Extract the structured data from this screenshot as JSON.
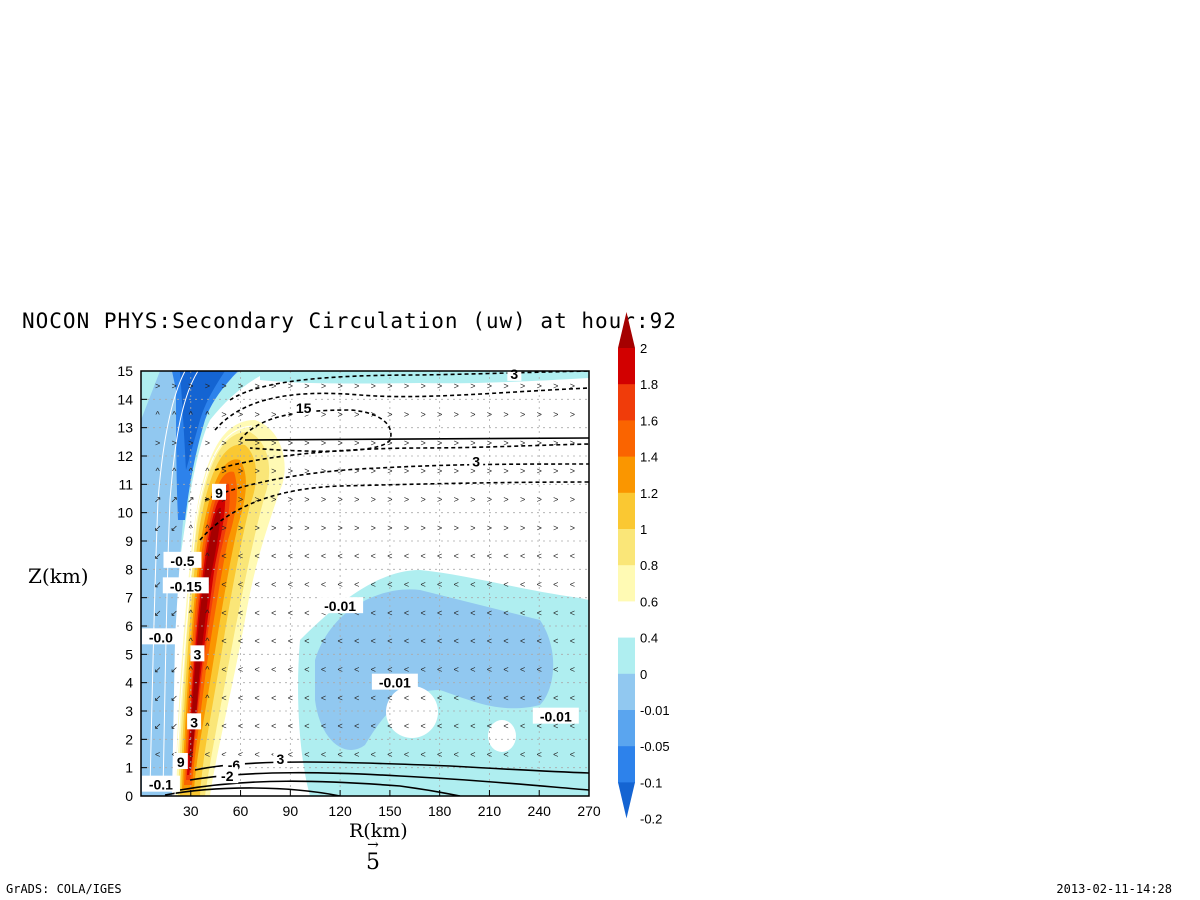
{
  "title": "NOCON PHYS:Secondary Circulation (uw) at hour:92",
  "footer_left": "GrADS: COLA/IGES",
  "footer_right": "2013-02-11-14:28",
  "vector_ref": "5",
  "chart_data": {
    "type": "heatmap",
    "xlabel": "R(km)",
    "ylabel": "Z(km)",
    "xlim": [
      0,
      270
    ],
    "ylim": [
      0,
      15
    ],
    "xticks": [
      30,
      60,
      90,
      120,
      150,
      180,
      210,
      240,
      270
    ],
    "yticks": [
      0,
      1,
      2,
      3,
      4,
      5,
      6,
      7,
      8,
      9,
      10,
      11,
      12,
      13,
      14,
      15
    ],
    "grid": true,
    "colorbar": {
      "levels": [
        "2",
        "1.8",
        "1.6",
        "1.4",
        "1.2",
        "1",
        "0.8",
        "0.6",
        "0.4",
        "0",
        "-0.01",
        "-0.05",
        "-0.1",
        "-0.2"
      ],
      "colors": [
        "#a50000",
        "#d20000",
        "#f03c0a",
        "#fa6400",
        "#fa9600",
        "#fac832",
        "#fae678",
        "#fffab4",
        "#ffffff",
        "#afeef0",
        "#91c8f0",
        "#5aa5ef",
        "#2d82eb",
        "#1464d2"
      ]
    },
    "contour_labels": [
      {
        "text": "3",
        "x": 225,
        "y": 14.9
      },
      {
        "text": "15",
        "x": 98,
        "y": 13.7
      },
      {
        "text": "3",
        "x": 202,
        "y": 11.8
      },
      {
        "text": "9",
        "x": 47,
        "y": 10.7
      },
      {
        "text": "-0.5",
        "x": 25,
        "y": 8.3
      },
      {
        "text": "-0.15",
        "x": 27,
        "y": 7.4
      },
      {
        "text": "-0.0",
        "x": 12,
        "y": 5.6
      },
      {
        "text": "3",
        "x": 34,
        "y": 5.0
      },
      {
        "text": "-0.01",
        "x": 120,
        "y": 6.7
      },
      {
        "text": "-0.01",
        "x": 153,
        "y": 4.0
      },
      {
        "text": "-0.01",
        "x": 250,
        "y": 2.8
      },
      {
        "text": "3",
        "x": 32,
        "y": 2.6
      },
      {
        "text": "9",
        "x": 24,
        "y": 1.2
      },
      {
        "text": "-6",
        "x": 56,
        "y": 1.1
      },
      {
        "text": "3",
        "x": 84,
        "y": 1.3
      },
      {
        "text": "-2",
        "x": 52,
        "y": 0.7
      },
      {
        "text": "-0.1",
        "x": 12,
        "y": 0.4
      }
    ]
  }
}
